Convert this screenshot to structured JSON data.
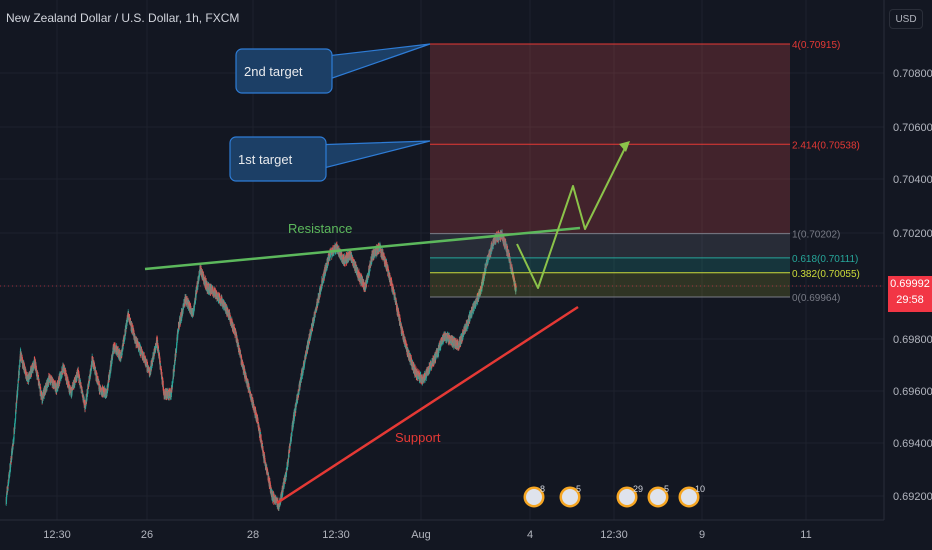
{
  "header": {
    "symbol_title": "New Zealand Dollar / U.S. Dollar, 1h, FXCM",
    "currency": "USD"
  },
  "price_axis": {
    "last_price": "0.69992",
    "countdown": "29:58"
  },
  "colors": {
    "background": "#131722",
    "up_candle": "#26a69a",
    "down_candle": "#ef5350",
    "resistance_line": "#5cb85c",
    "support_line": "#e53935",
    "projection_path": "#8bc34a",
    "callout_fill": "#1c3f66",
    "callout_border": "#2e7cd6",
    "last_price": "#f23645"
  },
  "chart_data": {
    "type": "candlestick",
    "title": "New Zealand Dollar / U.S. Dollar, 1h, FXCM",
    "ylim": [
      0.6915,
      0.71
    ],
    "y_ticks": [
      "0.70800",
      "0.70600",
      "0.70400",
      "0.70200",
      "0.69980",
      "0.69800",
      "0.69600",
      "0.69400",
      "0.69200"
    ],
    "x_ticks": [
      "12:30",
      "26",
      "28",
      "12:30",
      "Aug",
      "4",
      "12:30",
      "9",
      "11"
    ],
    "grid": true,
    "price_path": [
      [
        0.692,
        0.6942,
        0.6975,
        0.6965,
        0.6972,
        0.6958,
        0.6966,
        0.6962
      ],
      [
        0.697,
        0.696,
        0.6968,
        0.6955,
        0.6973,
        0.6962,
        0.696,
        0.6978
      ],
      [
        0.6974,
        0.699,
        0.698,
        0.6975,
        0.6968,
        0.698,
        0.696,
        0.696
      ],
      [
        0.6985,
        0.6996,
        0.699,
        0.7007,
        0.7,
        0.6998,
        0.6995,
        0.699
      ],
      [
        0.6982,
        0.697,
        0.696,
        0.695,
        0.6935,
        0.6922,
        0.6918,
        0.693
      ],
      [
        0.695,
        0.6965,
        0.6978,
        0.699,
        0.7002,
        0.7012,
        0.7015,
        0.701
      ],
      [
        0.7012,
        0.7005,
        0.7,
        0.7012,
        0.7015,
        0.7008,
        0.6998,
        0.6985
      ],
      [
        0.6975,
        0.6968,
        0.6965,
        0.697,
        0.6975,
        0.6982,
        0.698,
        0.6978
      ],
      [
        0.6985,
        0.6992,
        0.6998,
        0.701,
        0.7018,
        0.702,
        0.7012,
        0.6999
      ]
    ],
    "fibonacci": [
      {
        "label": "4(0.70915)",
        "value": 0.70915,
        "color": "#e53935"
      },
      {
        "label": "2.414(0.70538)",
        "value": 0.70538,
        "color": "#e53935"
      },
      {
        "label": "1(0.70202)",
        "value": 0.70202,
        "color": "#787b86"
      },
      {
        "label": "0.618(0.70111)",
        "value": 0.70111,
        "color": "#26a69a"
      },
      {
        "label": "0.382(0.70055)",
        "value": 0.70055,
        "color": "#cddc39"
      },
      {
        "label": "0(0.69964)",
        "value": 0.69964,
        "color": "#787b86"
      }
    ],
    "annotations": {
      "resistance": "Resistance",
      "support": "Support",
      "target_2": "2nd target",
      "target_1": "1st target"
    },
    "event_badges": [
      "8",
      "5",
      "29",
      "5",
      "10"
    ]
  }
}
